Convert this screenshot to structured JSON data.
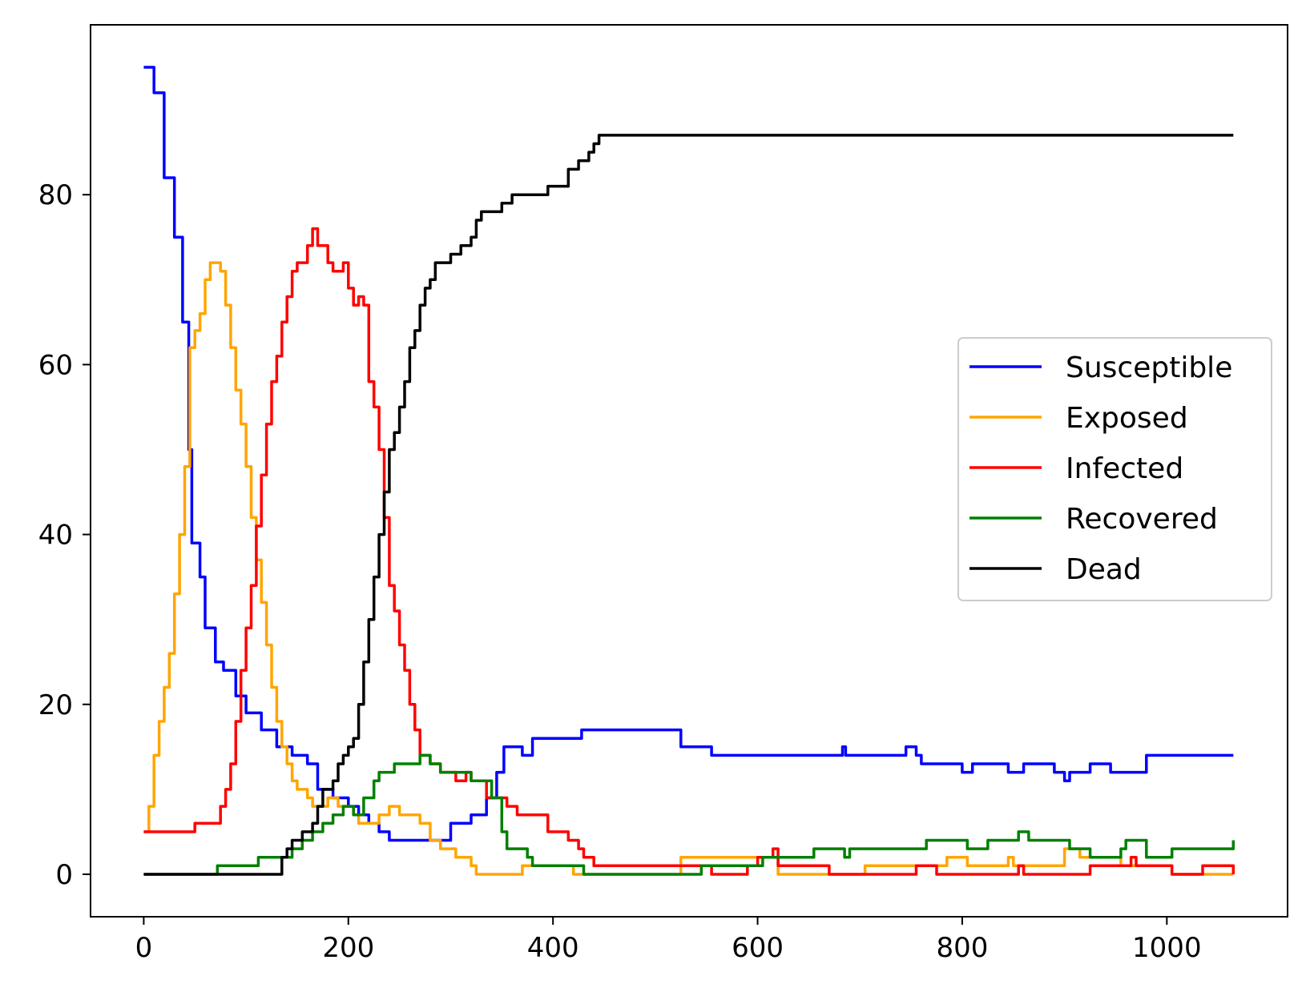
{
  "chart_data": {
    "type": "line",
    "title": "",
    "xlabel": "",
    "ylabel": "",
    "xlim": [
      -52,
      1118
    ],
    "ylim": [
      -5,
      100
    ],
    "xticks": [
      0,
      200,
      400,
      600,
      800,
      1000
    ],
    "yticks": [
      0,
      20,
      40,
      60,
      80
    ],
    "grid": false,
    "legend_position": "center-right",
    "series": [
      {
        "name": "Susceptible",
        "color": "#0000ff",
        "points": [
          [
            0,
            95
          ],
          [
            10,
            92
          ],
          [
            20,
            82
          ],
          [
            30,
            75
          ],
          [
            38,
            65
          ],
          [
            44,
            50
          ],
          [
            47,
            39
          ],
          [
            55,
            35
          ],
          [
            60,
            29
          ],
          [
            70,
            25
          ],
          [
            78,
            24
          ],
          [
            90,
            21
          ],
          [
            100,
            19
          ],
          [
            115,
            17
          ],
          [
            130,
            15
          ],
          [
            145,
            14
          ],
          [
            160,
            13
          ],
          [
            170,
            10
          ],
          [
            185,
            9
          ],
          [
            200,
            8
          ],
          [
            210,
            7
          ],
          [
            220,
            6
          ],
          [
            230,
            5
          ],
          [
            240,
            4
          ],
          [
            280,
            4
          ],
          [
            300,
            6
          ],
          [
            320,
            7
          ],
          [
            335,
            9
          ],
          [
            345,
            12
          ],
          [
            352,
            15
          ],
          [
            370,
            14
          ],
          [
            380,
            16
          ],
          [
            425,
            16
          ],
          [
            428,
            17
          ],
          [
            510,
            17
          ],
          [
            525,
            15
          ],
          [
            555,
            14
          ],
          [
            680,
            14
          ],
          [
            683,
            15
          ],
          [
            686,
            14
          ],
          [
            740,
            14
          ],
          [
            745,
            15
          ],
          [
            755,
            14
          ],
          [
            760,
            13
          ],
          [
            795,
            13
          ],
          [
            800,
            12
          ],
          [
            810,
            13
          ],
          [
            840,
            13
          ],
          [
            845,
            12
          ],
          [
            860,
            13
          ],
          [
            885,
            13
          ],
          [
            890,
            12
          ],
          [
            900,
            11
          ],
          [
            905,
            12
          ],
          [
            925,
            13
          ],
          [
            945,
            12
          ],
          [
            975,
            12
          ],
          [
            980,
            14
          ],
          [
            1065,
            14
          ]
        ]
      },
      {
        "name": "Exposed",
        "color": "#ffa500",
        "points": [
          [
            0,
            5
          ],
          [
            5,
            8
          ],
          [
            10,
            14
          ],
          [
            15,
            18
          ],
          [
            20,
            22
          ],
          [
            25,
            26
          ],
          [
            30,
            33
          ],
          [
            35,
            40
          ],
          [
            40,
            48
          ],
          [
            45,
            62
          ],
          [
            50,
            64
          ],
          [
            55,
            66
          ],
          [
            60,
            70
          ],
          [
            65,
            72
          ],
          [
            70,
            72
          ],
          [
            75,
            71
          ],
          [
            80,
            67
          ],
          [
            85,
            62
          ],
          [
            90,
            57
          ],
          [
            95,
            53
          ],
          [
            100,
            48
          ],
          [
            105,
            42
          ],
          [
            110,
            37
          ],
          [
            115,
            32
          ],
          [
            120,
            27
          ],
          [
            125,
            22
          ],
          [
            130,
            18
          ],
          [
            135,
            15
          ],
          [
            140,
            13
          ],
          [
            145,
            11
          ],
          [
            150,
            10
          ],
          [
            160,
            9
          ],
          [
            165,
            8
          ],
          [
            180,
            9
          ],
          [
            190,
            8
          ],
          [
            200,
            8
          ],
          [
            205,
            7
          ],
          [
            210,
            6
          ],
          [
            220,
            6
          ],
          [
            230,
            7
          ],
          [
            240,
            8
          ],
          [
            250,
            7
          ],
          [
            270,
            6
          ],
          [
            280,
            4
          ],
          [
            290,
            3
          ],
          [
            305,
            2
          ],
          [
            320,
            1
          ],
          [
            325,
            0
          ],
          [
            365,
            0
          ],
          [
            370,
            1
          ],
          [
            400,
            1
          ],
          [
            420,
            0
          ],
          [
            520,
            0
          ],
          [
            525,
            2
          ],
          [
            560,
            2
          ],
          [
            620,
            0
          ],
          [
            700,
            0
          ],
          [
            705,
            1
          ],
          [
            780,
            1
          ],
          [
            785,
            2
          ],
          [
            800,
            2
          ],
          [
            805,
            1
          ],
          [
            840,
            1
          ],
          [
            845,
            2
          ],
          [
            850,
            1
          ],
          [
            895,
            1
          ],
          [
            900,
            3
          ],
          [
            910,
            3
          ],
          [
            915,
            2
          ],
          [
            950,
            2
          ],
          [
            955,
            1
          ],
          [
            1000,
            1
          ],
          [
            1005,
            0
          ],
          [
            1065,
            0
          ]
        ]
      },
      {
        "name": "Infected",
        "color": "#ff0000",
        "points": [
          [
            0,
            5
          ],
          [
            45,
            5
          ],
          [
            50,
            6
          ],
          [
            68,
            6
          ],
          [
            75,
            8
          ],
          [
            80,
            10
          ],
          [
            85,
            13
          ],
          [
            90,
            18
          ],
          [
            95,
            24
          ],
          [
            100,
            29
          ],
          [
            105,
            34
          ],
          [
            110,
            41
          ],
          [
            115,
            47
          ],
          [
            120,
            53
          ],
          [
            125,
            58
          ],
          [
            130,
            61
          ],
          [
            135,
            65
          ],
          [
            140,
            68
          ],
          [
            145,
            71
          ],
          [
            150,
            72
          ],
          [
            160,
            74
          ],
          [
            165,
            76
          ],
          [
            170,
            74
          ],
          [
            180,
            72
          ],
          [
            185,
            71
          ],
          [
            190,
            71
          ],
          [
            195,
            72
          ],
          [
            200,
            69
          ],
          [
            205,
            67
          ],
          [
            210,
            68
          ],
          [
            215,
            67
          ],
          [
            220,
            58
          ],
          [
            225,
            55
          ],
          [
            230,
            50
          ],
          [
            235,
            42
          ],
          [
            240,
            34
          ],
          [
            245,
            31
          ],
          [
            250,
            27
          ],
          [
            255,
            24
          ],
          [
            260,
            20
          ],
          [
            265,
            17
          ],
          [
            270,
            14
          ],
          [
            280,
            13
          ],
          [
            290,
            12
          ],
          [
            300,
            12
          ],
          [
            305,
            11
          ],
          [
            315,
            12
          ],
          [
            320,
            11
          ],
          [
            335,
            9
          ],
          [
            345,
            9
          ],
          [
            355,
            8
          ],
          [
            365,
            7
          ],
          [
            390,
            7
          ],
          [
            395,
            5
          ],
          [
            415,
            4
          ],
          [
            425,
            3
          ],
          [
            430,
            2
          ],
          [
            440,
            1
          ],
          [
            550,
            1
          ],
          [
            555,
            0
          ],
          [
            585,
            0
          ],
          [
            590,
            1
          ],
          [
            600,
            2
          ],
          [
            610,
            2
          ],
          [
            615,
            3
          ],
          [
            620,
            1
          ],
          [
            665,
            1
          ],
          [
            670,
            0
          ],
          [
            750,
            0
          ],
          [
            755,
            1
          ],
          [
            770,
            1
          ],
          [
            775,
            0
          ],
          [
            850,
            0
          ],
          [
            855,
            1
          ],
          [
            860,
            0
          ],
          [
            920,
            0
          ],
          [
            925,
            1
          ],
          [
            960,
            1
          ],
          [
            965,
            2
          ],
          [
            970,
            1
          ],
          [
            1000,
            1
          ],
          [
            1005,
            0
          ],
          [
            1030,
            0
          ],
          [
            1035,
            1
          ],
          [
            1060,
            1
          ],
          [
            1065,
            0
          ]
        ]
      },
      {
        "name": "Recovered",
        "color": "#008000",
        "points": [
          [
            0,
            0
          ],
          [
            70,
            0
          ],
          [
            72,
            1
          ],
          [
            110,
            1
          ],
          [
            112,
            2
          ],
          [
            140,
            2
          ],
          [
            145,
            3
          ],
          [
            155,
            4
          ],
          [
            165,
            5
          ],
          [
            175,
            6
          ],
          [
            185,
            7
          ],
          [
            195,
            8
          ],
          [
            205,
            7
          ],
          [
            215,
            9
          ],
          [
            225,
            11
          ],
          [
            230,
            12
          ],
          [
            245,
            13
          ],
          [
            270,
            14
          ],
          [
            280,
            13
          ],
          [
            290,
            12
          ],
          [
            320,
            11
          ],
          [
            330,
            11
          ],
          [
            340,
            9
          ],
          [
            350,
            5
          ],
          [
            355,
            3
          ],
          [
            375,
            2
          ],
          [
            380,
            1
          ],
          [
            425,
            1
          ],
          [
            430,
            0
          ],
          [
            540,
            0
          ],
          [
            545,
            1
          ],
          [
            600,
            1
          ],
          [
            605,
            2
          ],
          [
            650,
            2
          ],
          [
            655,
            3
          ],
          [
            680,
            3
          ],
          [
            685,
            2
          ],
          [
            690,
            3
          ],
          [
            760,
            3
          ],
          [
            765,
            4
          ],
          [
            800,
            4
          ],
          [
            805,
            3
          ],
          [
            820,
            3
          ],
          [
            825,
            4
          ],
          [
            850,
            4
          ],
          [
            855,
            5
          ],
          [
            865,
            4
          ],
          [
            900,
            4
          ],
          [
            905,
            3
          ],
          [
            920,
            3
          ],
          [
            925,
            2
          ],
          [
            950,
            2
          ],
          [
            955,
            3
          ],
          [
            960,
            4
          ],
          [
            975,
            4
          ],
          [
            980,
            2
          ],
          [
            1000,
            2
          ],
          [
            1005,
            3
          ],
          [
            1060,
            3
          ],
          [
            1065,
            4
          ]
        ]
      },
      {
        "name": "Dead",
        "color": "#000000",
        "points": [
          [
            0,
            0
          ],
          [
            130,
            0
          ],
          [
            135,
            2
          ],
          [
            140,
            3
          ],
          [
            145,
            4
          ],
          [
            155,
            5
          ],
          [
            165,
            6
          ],
          [
            170,
            8
          ],
          [
            175,
            10
          ],
          [
            185,
            11
          ],
          [
            190,
            13
          ],
          [
            195,
            14
          ],
          [
            200,
            15
          ],
          [
            205,
            16
          ],
          [
            210,
            20
          ],
          [
            215,
            25
          ],
          [
            220,
            30
          ],
          [
            225,
            35
          ],
          [
            230,
            40
          ],
          [
            235,
            45
          ],
          [
            240,
            50
          ],
          [
            245,
            52
          ],
          [
            250,
            55
          ],
          [
            255,
            58
          ],
          [
            260,
            62
          ],
          [
            265,
            64
          ],
          [
            270,
            67
          ],
          [
            275,
            69
          ],
          [
            280,
            70
          ],
          [
            285,
            72
          ],
          [
            300,
            73
          ],
          [
            310,
            74
          ],
          [
            320,
            75
          ],
          [
            325,
            77
          ],
          [
            330,
            78
          ],
          [
            350,
            79
          ],
          [
            360,
            80
          ],
          [
            390,
            80
          ],
          [
            395,
            81
          ],
          [
            410,
            81
          ],
          [
            415,
            83
          ],
          [
            425,
            84
          ],
          [
            435,
            85
          ],
          [
            440,
            86
          ],
          [
            445,
            87
          ],
          [
            1065,
            87
          ]
        ]
      }
    ]
  }
}
